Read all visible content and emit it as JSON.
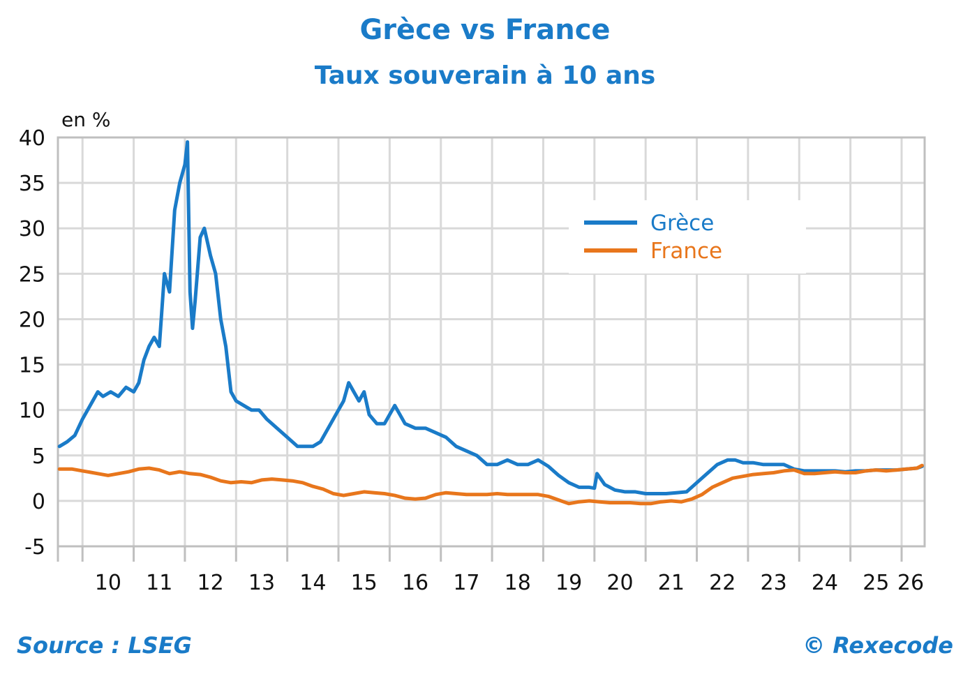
{
  "header": {
    "title": "Grèce vs France",
    "subtitle": "Taux souverain à 10 ans"
  },
  "footer": {
    "source": "Source : LSEG",
    "copyright": "© Rexecode"
  },
  "colors": {
    "title": "#1a7bc8",
    "greece": "#1a7bc8",
    "france": "#e8761c",
    "grid": "#d9d9d9",
    "axis": "#bfbfbf",
    "text": "#111111"
  },
  "chart_data": {
    "type": "line",
    "title": "Grèce vs France",
    "subtitle": "Taux souverain à 10 ans",
    "ylabel": "en %",
    "xlabel": "",
    "ylim": [
      -5,
      40
    ],
    "yticks": [
      -5,
      0,
      5,
      10,
      15,
      20,
      25,
      30,
      35,
      40
    ],
    "xlim": [
      2009.52,
      2026.45
    ],
    "xtick_labels": [
      "10",
      "11",
      "12",
      "13",
      "14",
      "15",
      "16",
      "17",
      "18",
      "19",
      "20",
      "21",
      "22",
      "23",
      "24",
      "25",
      "26"
    ],
    "grid": true,
    "legend_position": "top-right",
    "series": [
      {
        "name": "Grèce",
        "color": "#1a7bc8",
        "x": [
          2009.55,
          2009.7,
          2009.85,
          2010.0,
          2010.2,
          2010.3,
          2010.4,
          2010.55,
          2010.7,
          2010.85,
          2011.0,
          2011.1,
          2011.2,
          2011.3,
          2011.4,
          2011.5,
          2011.6,
          2011.7,
          2011.8,
          2011.9,
          2012.0,
          2012.05,
          2012.1,
          2012.15,
          2012.2,
          2012.3,
          2012.38,
          2012.5,
          2012.6,
          2012.7,
          2012.8,
          2012.9,
          2013.0,
          2013.15,
          2013.3,
          2013.45,
          2013.6,
          2013.8,
          2014.0,
          2014.2,
          2014.35,
          2014.5,
          2014.65,
          2014.8,
          2014.95,
          2015.1,
          2015.2,
          2015.3,
          2015.4,
          2015.5,
          2015.6,
          2015.75,
          2015.9,
          2016.1,
          2016.3,
          2016.5,
          2016.7,
          2016.9,
          2017.1,
          2017.3,
          2017.5,
          2017.7,
          2017.9,
          2018.1,
          2018.3,
          2018.5,
          2018.7,
          2018.9,
          2019.1,
          2019.3,
          2019.5,
          2019.7,
          2019.9,
          2020.0,
          2020.05,
          2020.2,
          2020.4,
          2020.6,
          2020.8,
          2021.0,
          2021.2,
          2021.4,
          2021.6,
          2021.8,
          2022.0,
          2022.2,
          2022.4,
          2022.6,
          2022.75,
          2022.9,
          2023.1,
          2023.3,
          2023.5,
          2023.7,
          2023.9,
          2024.1,
          2024.3,
          2024.5,
          2024.7,
          2024.9,
          2025.1,
          2025.3,
          2025.5,
          2025.7,
          2025.9,
          2026.1,
          2026.3,
          2026.4
        ],
        "values": [
          6.0,
          6.5,
          7.2,
          9.0,
          11.0,
          12.0,
          11.5,
          12.0,
          11.5,
          12.5,
          12.0,
          13.0,
          15.5,
          17.0,
          18.0,
          17.0,
          25.0,
          23.0,
          32.0,
          35.0,
          37.0,
          39.5,
          23.0,
          19.0,
          22.0,
          29.0,
          30.0,
          27.0,
          25.0,
          20.0,
          17.0,
          12.0,
          11.0,
          10.5,
          10.0,
          10.0,
          9.0,
          8.0,
          7.0,
          6.0,
          6.0,
          6.0,
          6.5,
          8.0,
          9.5,
          11.0,
          13.0,
          12.0,
          11.0,
          12.0,
          9.5,
          8.5,
          8.5,
          10.5,
          8.5,
          8.0,
          8.0,
          7.5,
          7.0,
          6.0,
          5.5,
          5.0,
          4.0,
          4.0,
          4.5,
          4.0,
          4.0,
          4.5,
          3.8,
          2.8,
          2.0,
          1.5,
          1.5,
          1.4,
          3.0,
          1.8,
          1.2,
          1.0,
          1.0,
          0.8,
          0.8,
          0.8,
          0.9,
          1.0,
          2.0,
          3.0,
          4.0,
          4.5,
          4.5,
          4.2,
          4.2,
          4.0,
          4.0,
          4.0,
          3.5,
          3.3,
          3.3,
          3.3,
          3.3,
          3.2,
          3.3,
          3.3,
          3.4,
          3.4,
          3.4,
          3.5,
          3.6,
          3.8
        ]
      },
      {
        "name": "France",
        "color": "#e8761c",
        "x": [
          2009.55,
          2009.8,
          2010.0,
          2010.3,
          2010.5,
          2010.7,
          2010.9,
          2011.1,
          2011.3,
          2011.5,
          2011.7,
          2011.9,
          2012.1,
          2012.3,
          2012.5,
          2012.7,
          2012.9,
          2013.1,
          2013.3,
          2013.5,
          2013.7,
          2013.9,
          2014.1,
          2014.3,
          2014.5,
          2014.7,
          2014.9,
          2015.1,
          2015.3,
          2015.5,
          2015.7,
          2015.9,
          2016.1,
          2016.3,
          2016.5,
          2016.7,
          2016.9,
          2017.1,
          2017.3,
          2017.5,
          2017.7,
          2017.9,
          2018.1,
          2018.3,
          2018.5,
          2018.7,
          2018.9,
          2019.1,
          2019.3,
          2019.5,
          2019.7,
          2019.9,
          2020.1,
          2020.3,
          2020.5,
          2020.7,
          2020.9,
          2021.1,
          2021.3,
          2021.5,
          2021.7,
          2021.9,
          2022.1,
          2022.3,
          2022.5,
          2022.7,
          2022.9,
          2023.1,
          2023.3,
          2023.5,
          2023.7,
          2023.9,
          2024.1,
          2024.3,
          2024.5,
          2024.7,
          2024.9,
          2025.1,
          2025.3,
          2025.5,
          2025.7,
          2025.9,
          2026.1,
          2026.3,
          2026.4
        ],
        "values": [
          3.5,
          3.5,
          3.3,
          3.0,
          2.8,
          3.0,
          3.2,
          3.5,
          3.6,
          3.4,
          3.0,
          3.2,
          3.0,
          2.9,
          2.6,
          2.2,
          2.0,
          2.1,
          2.0,
          2.3,
          2.4,
          2.3,
          2.2,
          2.0,
          1.6,
          1.3,
          0.8,
          0.6,
          0.8,
          1.0,
          0.9,
          0.8,
          0.6,
          0.3,
          0.2,
          0.3,
          0.7,
          0.9,
          0.8,
          0.7,
          0.7,
          0.7,
          0.8,
          0.7,
          0.7,
          0.7,
          0.7,
          0.5,
          0.1,
          -0.3,
          -0.1,
          0.0,
          -0.1,
          -0.2,
          -0.2,
          -0.2,
          -0.3,
          -0.3,
          -0.1,
          0.0,
          -0.1,
          0.2,
          0.7,
          1.5,
          2.0,
          2.5,
          2.7,
          2.9,
          3.0,
          3.1,
          3.3,
          3.4,
          3.0,
          3.0,
          3.1,
          3.2,
          3.1,
          3.1,
          3.3,
          3.4,
          3.3,
          3.4,
          3.5,
          3.6,
          3.9
        ]
      }
    ]
  }
}
